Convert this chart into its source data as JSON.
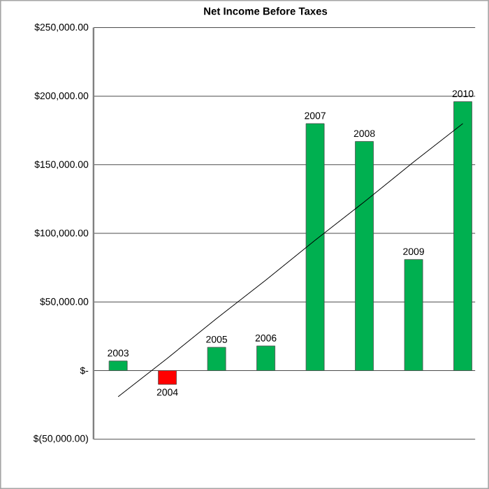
{
  "chart_data": {
    "type": "bar",
    "title": "Net Income Before Taxes",
    "categories": [
      "2003",
      "2004",
      "2005",
      "2006",
      "2007",
      "2008",
      "2009",
      "2010"
    ],
    "values": [
      7000,
      -10000,
      17000,
      18000,
      180000,
      167000,
      81000,
      196000
    ],
    "colors": [
      "#00b050",
      "#ff0000",
      "#00b050",
      "#00b050",
      "#00b050",
      "#00b050",
      "#00b050",
      "#00b050"
    ],
    "series": [
      {
        "type": "line",
        "color": "#000000",
        "values": [
          -19000,
          9000,
          38000,
          66000,
          95000,
          123000,
          152000,
          180000
        ]
      }
    ],
    "ylim": [
      -50000,
      250000
    ],
    "yticks": [
      {
        "value": -50000,
        "label": "$(50,000.00)"
      },
      {
        "value": 0,
        "label": "$-"
      },
      {
        "value": 50000,
        "label": "$50,000.00"
      },
      {
        "value": 100000,
        "label": "$100,000.00"
      },
      {
        "value": 150000,
        "label": "$150,000.00"
      },
      {
        "value": 200000,
        "label": "$200,000.00"
      },
      {
        "value": 250000,
        "label": "$250,000.00"
      }
    ],
    "grid": "y",
    "marker": "none",
    "line_style": "solid"
  }
}
